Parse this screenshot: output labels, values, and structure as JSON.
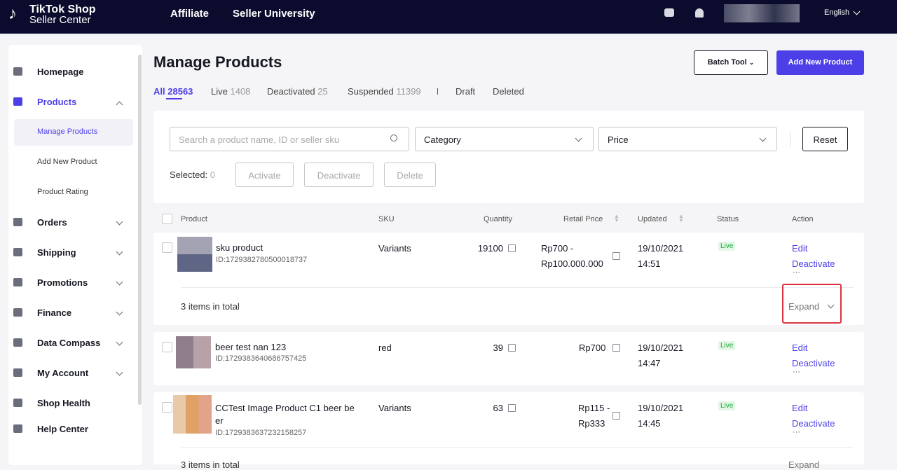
{
  "header": {
    "logo_line1": "TikTok Shop",
    "logo_line2": "Seller Center",
    "nav": [
      "Affiliate",
      "Seller University"
    ],
    "language": "English"
  },
  "sidebar": {
    "items": [
      "Homepage",
      "Products",
      "Orders",
      "Shipping",
      "Promotions",
      "Finance",
      "Data Compass",
      "My Account",
      "Shop Health",
      "Help Center"
    ],
    "product_subitems": [
      "Manage Products",
      "Add New Product",
      "Product Rating"
    ]
  },
  "page": {
    "title": "Manage Products",
    "batch_tool": "Batch Tool",
    "add_new": "Add New Product"
  },
  "tabs": [
    {
      "label": "All",
      "count": 28563
    },
    {
      "label": "Live",
      "count": 1408
    },
    {
      "label": "Deactivated",
      "count": 25
    },
    {
      "label": "Suspended",
      "count": 11399
    },
    {
      "label": "Draft"
    },
    {
      "label": "Deleted"
    }
  ],
  "filters": {
    "search_placeholder": "Search a product name, ID or seller sku",
    "category": "Category",
    "price": "Price",
    "reset": "Reset",
    "selected_label": "Selected:",
    "selected_count": 0,
    "actions": [
      "Activate",
      "Deactivate",
      "Delete"
    ]
  },
  "table": {
    "columns": [
      "Product",
      "SKU",
      "Quantity",
      "Retail Price",
      "Updated",
      "Status",
      "Action"
    ],
    "rows": [
      {
        "name": "sku product",
        "id": "ID:1729382780500018737",
        "sku": "Variants",
        "quantity": 19100,
        "price": [
          "Rp700 -",
          "Rp100.000.000"
        ],
        "date": "19/10/2021",
        "time": "14:51",
        "status": "Live",
        "actions": [
          "Edit",
          "Deactivate",
          "···"
        ],
        "footer": "3 items in total",
        "expand": "Expand"
      },
      {
        "name": "beer test nan 123",
        "id": "ID:1729383640686757425",
        "sku": "red",
        "quantity": 39,
        "price": [
          "Rp700"
        ],
        "date": "19/10/2021",
        "time": "14:47",
        "status": "Live",
        "actions": [
          "Edit",
          "Deactivate",
          "···"
        ]
      },
      {
        "name": "CCTest Image Product C1 beer be er",
        "id": "ID:1729383637232158257",
        "sku": "Variants",
        "quantity": 63,
        "price": [
          "Rp115 -",
          "Rp333"
        ],
        "date": "19/10/2021",
        "time": "14:45",
        "status": "Live",
        "actions": [
          "Edit",
          "Deactivate",
          "···"
        ],
        "footer": "3 items in total",
        "expand": "Expand"
      }
    ]
  }
}
